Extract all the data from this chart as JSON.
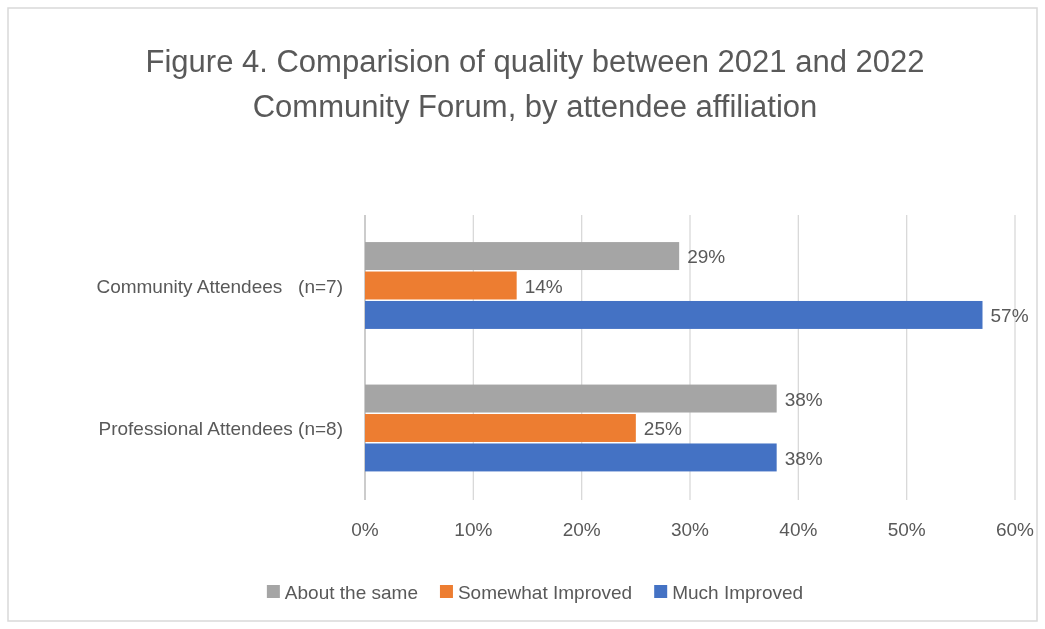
{
  "chart_data": {
    "type": "bar",
    "orientation": "horizontal",
    "title": "Figure 4. Comparision of quality between 2021 and 2022 Community Forum, by attendee affiliation",
    "categories": [
      "Community Attendees   (n=7)",
      "Professional Attendees (n=8)"
    ],
    "series": [
      {
        "name": "About the same",
        "color": "#a5a5a5",
        "values": [
          29,
          38
        ],
        "value_labels": [
          "29%",
          "38%"
        ]
      },
      {
        "name": "Somewhat Improved",
        "color": "#ed7d31",
        "values": [
          14,
          25
        ],
        "value_labels": [
          "14%",
          "25%"
        ]
      },
      {
        "name": "Much Improved",
        "color": "#4472c4",
        "values": [
          57,
          38
        ],
        "value_labels": [
          "57%",
          "38%"
        ]
      }
    ],
    "xlim": [
      0,
      60
    ],
    "xticks": [
      {
        "value": 0,
        "label": "0%"
      },
      {
        "value": 10,
        "label": "10%"
      },
      {
        "value": 20,
        "label": "20%"
      },
      {
        "value": 30,
        "label": "30%"
      },
      {
        "value": 40,
        "label": "40%"
      },
      {
        "value": 50,
        "label": "50%"
      },
      {
        "value": 60,
        "label": "60%"
      }
    ],
    "grid": "x",
    "legend": "bottom"
  }
}
